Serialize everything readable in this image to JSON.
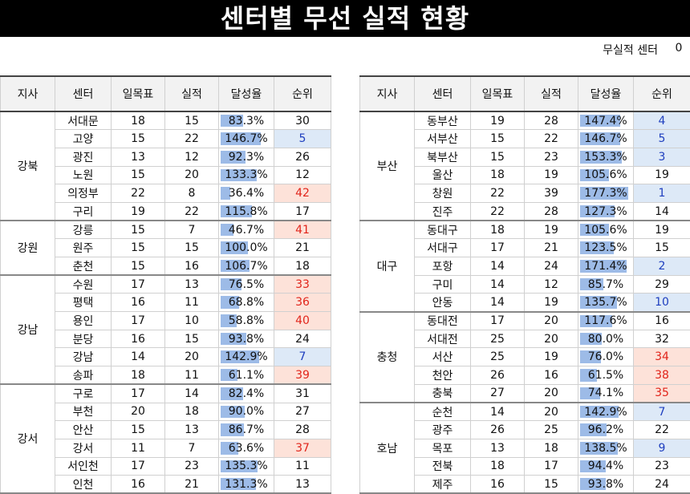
{
  "title": "센터별 무선 실적 현황",
  "no_result": {
    "label": "무실적 센터",
    "value": "0"
  },
  "headers": [
    "지사",
    "센터",
    "일목표",
    "실적",
    "달성율",
    "순위"
  ],
  "left_table": [
    {
      "branch": "강북",
      "rows": [
        {
          "center": "서대문",
          "target": "18",
          "actual": "15",
          "rate": "83.3%",
          "rank": "30"
        },
        {
          "center": "고양",
          "target": "15",
          "actual": "22",
          "rate": "146.7%",
          "rank": "5"
        },
        {
          "center": "광진",
          "target": "13",
          "actual": "12",
          "rate": "92.3%",
          "rank": "26"
        },
        {
          "center": "노원",
          "target": "15",
          "actual": "20",
          "rate": "133.3%",
          "rank": "12"
        },
        {
          "center": "의정부",
          "target": "22",
          "actual": "8",
          "rate": "36.4%",
          "rank": "42"
        },
        {
          "center": "구리",
          "target": "19",
          "actual": "22",
          "rate": "115.8%",
          "rank": "17"
        }
      ]
    },
    {
      "branch": "강원",
      "rows": [
        {
          "center": "강릉",
          "target": "15",
          "actual": "7",
          "rate": "46.7%",
          "rank": "41"
        },
        {
          "center": "원주",
          "target": "15",
          "actual": "15",
          "rate": "100.0%",
          "rank": "21"
        },
        {
          "center": "춘천",
          "target": "15",
          "actual": "16",
          "rate": "106.7%",
          "rank": "18"
        }
      ]
    },
    {
      "branch": "강남",
      "rows": [
        {
          "center": "수원",
          "target": "17",
          "actual": "13",
          "rate": "76.5%",
          "rank": "33"
        },
        {
          "center": "평택",
          "target": "16",
          "actual": "11",
          "rate": "68.8%",
          "rank": "36"
        },
        {
          "center": "용인",
          "target": "17",
          "actual": "10",
          "rate": "58.8%",
          "rank": "40"
        },
        {
          "center": "분당",
          "target": "16",
          "actual": "15",
          "rate": "93.8%",
          "rank": "24"
        },
        {
          "center": "강남",
          "target": "14",
          "actual": "20",
          "rate": "142.9%",
          "rank": "7"
        },
        {
          "center": "송파",
          "target": "18",
          "actual": "11",
          "rate": "61.1%",
          "rank": "39"
        }
      ]
    },
    {
      "branch": "강서",
      "rows": [
        {
          "center": "구로",
          "target": "17",
          "actual": "14",
          "rate": "82.4%",
          "rank": "31"
        },
        {
          "center": "부천",
          "target": "20",
          "actual": "18",
          "rate": "90.0%",
          "rank": "27"
        },
        {
          "center": "안산",
          "target": "15",
          "actual": "13",
          "rate": "86.7%",
          "rank": "28"
        },
        {
          "center": "강서",
          "target": "11",
          "actual": "7",
          "rate": "63.6%",
          "rank": "37"
        },
        {
          "center": "서인천",
          "target": "17",
          "actual": "23",
          "rate": "135.3%",
          "rank": "11"
        },
        {
          "center": "인천",
          "target": "16",
          "actual": "21",
          "rate": "131.3%",
          "rank": "13"
        }
      ]
    }
  ],
  "right_table": [
    {
      "branch": "부산",
      "rows": [
        {
          "center": "동부산",
          "target": "19",
          "actual": "28",
          "rate": "147.4%",
          "rank": "4"
        },
        {
          "center": "서부산",
          "target": "15",
          "actual": "22",
          "rate": "146.7%",
          "rank": "5"
        },
        {
          "center": "북부산",
          "target": "15",
          "actual": "23",
          "rate": "153.3%",
          "rank": "3"
        },
        {
          "center": "울산",
          "target": "18",
          "actual": "19",
          "rate": "105.6%",
          "rank": "19"
        },
        {
          "center": "창원",
          "target": "22",
          "actual": "39",
          "rate": "177.3%",
          "rank": "1"
        },
        {
          "center": "진주",
          "target": "22",
          "actual": "28",
          "rate": "127.3%",
          "rank": "14"
        }
      ]
    },
    {
      "branch": "대구",
      "rows": [
        {
          "center": "동대구",
          "target": "18",
          "actual": "19",
          "rate": "105.6%",
          "rank": "19"
        },
        {
          "center": "서대구",
          "target": "17",
          "actual": "21",
          "rate": "123.5%",
          "rank": "15"
        },
        {
          "center": "포항",
          "target": "14",
          "actual": "24",
          "rate": "171.4%",
          "rank": "2"
        },
        {
          "center": "구미",
          "target": "14",
          "actual": "12",
          "rate": "85.7%",
          "rank": "29"
        },
        {
          "center": "안동",
          "target": "14",
          "actual": "19",
          "rate": "135.7%",
          "rank": "10"
        }
      ]
    },
    {
      "branch": "충청",
      "rows": [
        {
          "center": "동대전",
          "target": "17",
          "actual": "20",
          "rate": "117.6%",
          "rank": "16"
        },
        {
          "center": "서대전",
          "target": "25",
          "actual": "20",
          "rate": "80.0%",
          "rank": "32"
        },
        {
          "center": "서산",
          "target": "25",
          "actual": "19",
          "rate": "76.0%",
          "rank": "34"
        },
        {
          "center": "천안",
          "target": "26",
          "actual": "16",
          "rate": "61.5%",
          "rank": "38"
        },
        {
          "center": "충북",
          "target": "27",
          "actual": "20",
          "rate": "74.1%",
          "rank": "35"
        }
      ]
    },
    {
      "branch": "호남",
      "rows": [
        {
          "center": "순천",
          "target": "14",
          "actual": "20",
          "rate": "142.9%",
          "rank": "7"
        },
        {
          "center": "광주",
          "target": "26",
          "actual": "25",
          "rate": "96.2%",
          "rank": "22"
        },
        {
          "center": "목포",
          "target": "13",
          "actual": "18",
          "rate": "138.5%",
          "rank": "9"
        },
        {
          "center": "전북",
          "target": "18",
          "actual": "17",
          "rate": "94.4%",
          "rank": "23"
        },
        {
          "center": "제주",
          "target": "16",
          "actual": "15",
          "rate": "93.8%",
          "rank": "24"
        }
      ]
    }
  ],
  "colors": {
    "top_rank_bg": "#dde9f7",
    "top_rank_text": "#1f3fbf",
    "bottom_rank_bg": "#fde2d9",
    "bottom_rank_text": "#e1251b",
    "bar": "#9dbbe7"
  },
  "rank_thresholds": {
    "top_max": 10,
    "bottom_min": 33
  },
  "rate_bar_max": 177.3
}
